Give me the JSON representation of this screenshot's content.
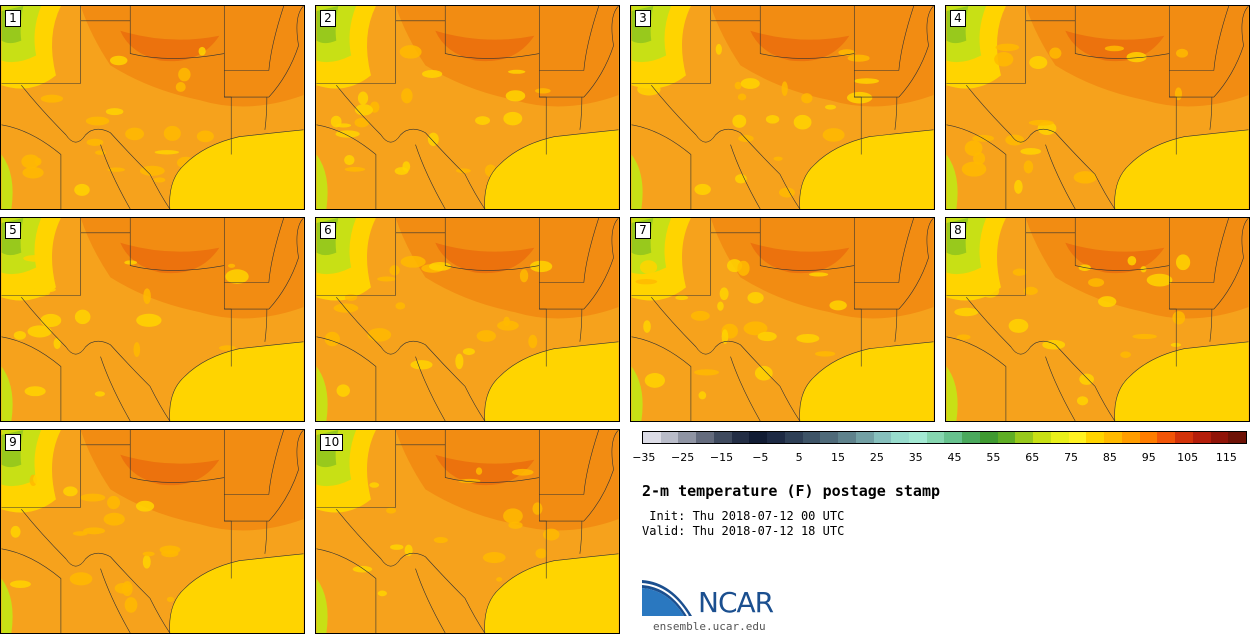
{
  "panels": [
    {
      "label": "1"
    },
    {
      "label": "2"
    },
    {
      "label": "3"
    },
    {
      "label": "4"
    },
    {
      "label": "5"
    },
    {
      "label": "6"
    },
    {
      "label": "7"
    },
    {
      "label": "8"
    },
    {
      "label": "9"
    },
    {
      "label": "10"
    }
  ],
  "colorbar": {
    "colors": [
      "#dcdce6",
      "#b9bcc9",
      "#8f94a3",
      "#646b7d",
      "#3f4a5e",
      "#232e45",
      "#111c34",
      "#1d2a44",
      "#2e3f56",
      "#3e5467",
      "#4f6a79",
      "#5f828c",
      "#73a0a4",
      "#87c0bd",
      "#98dccd",
      "#a3e9d3",
      "#86d6b0",
      "#67c28e",
      "#4aa95d",
      "#3f9a31",
      "#5fae25",
      "#98c91c",
      "#c8e015",
      "#e9f01b",
      "#fff222",
      "#ffd400",
      "#ffba00",
      "#ff9d00",
      "#ff7d00",
      "#f25508",
      "#d3330a",
      "#b41e0b",
      "#901408",
      "#6e1206"
    ],
    "tick_labels": [
      "−35",
      "−25",
      "−15",
      "−5",
      "5",
      "15",
      "25",
      "35",
      "45",
      "55",
      "65",
      "75",
      "85",
      "95",
      "105",
      "115"
    ]
  },
  "title": "2-m temperature (F) postage stamp",
  "init": " Init: Thu 2018-07-12 00 UTC",
  "valid": "Valid: Thu 2018-07-12 18 UTC",
  "logo": {
    "text": "NCAR",
    "url": "ensemble.ucar.edu"
  }
}
